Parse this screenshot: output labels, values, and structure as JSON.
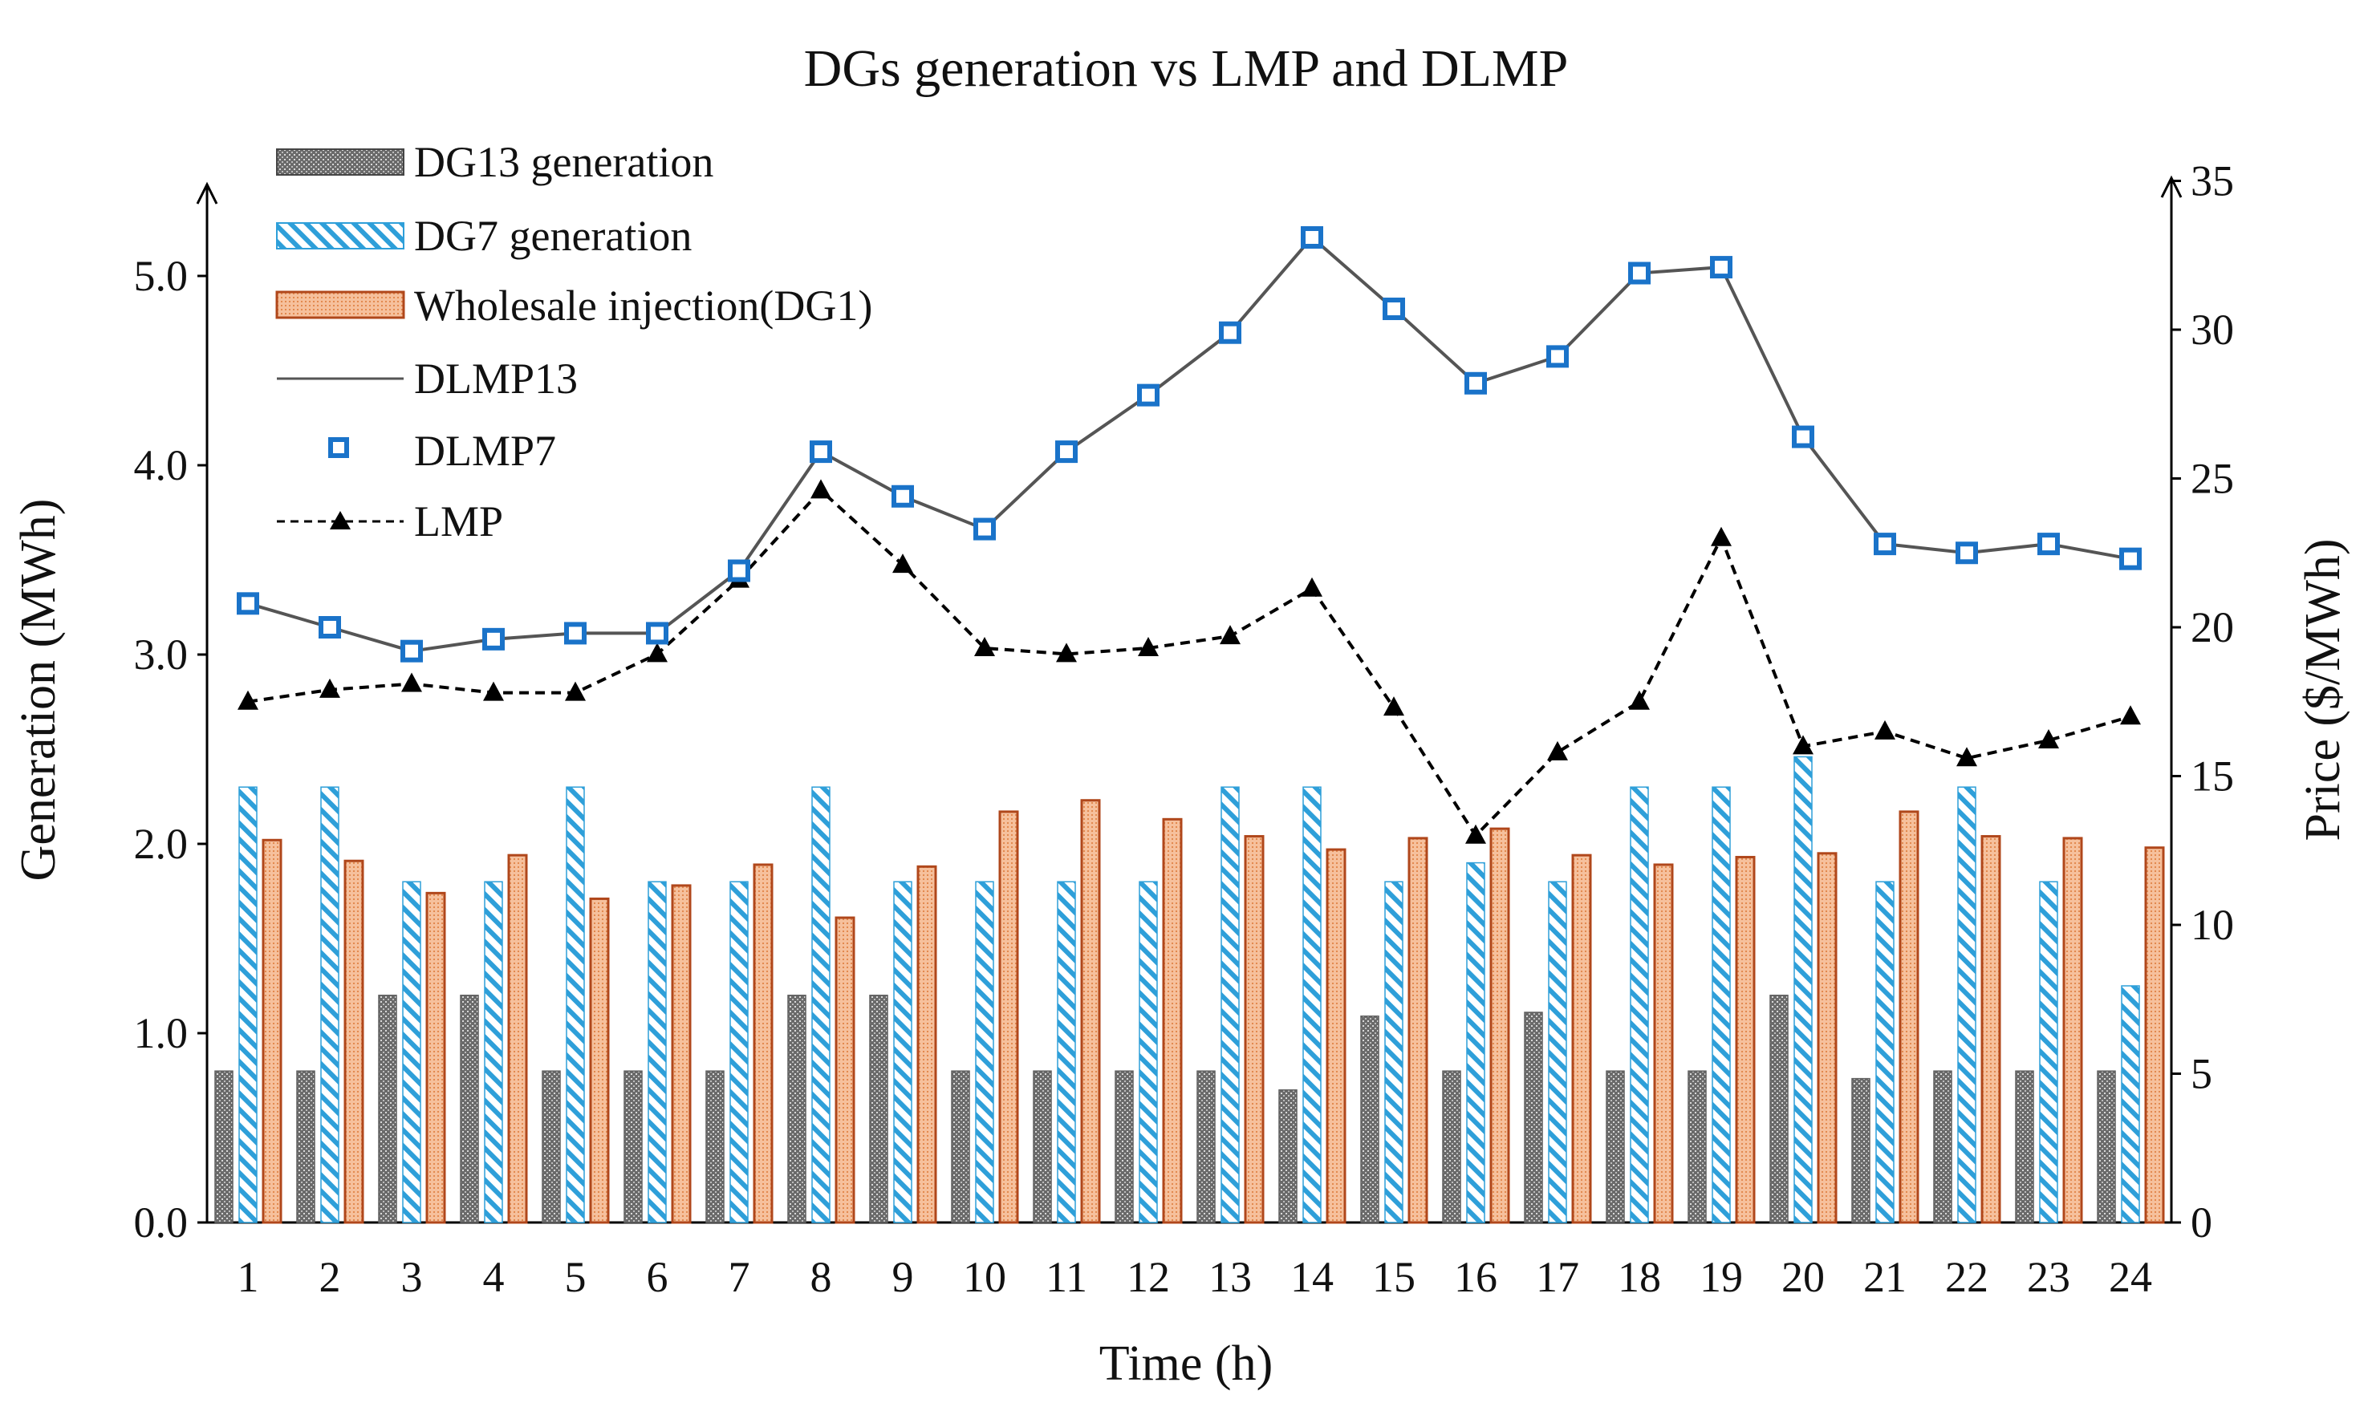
{
  "chart_data": {
    "type": "bar",
    "title": "DGs generation vs LMP and DLMP",
    "xlabel": "Time (h)",
    "ylabel_left": "Generation (MWh)",
    "ylabel_right": "Price ($/MWh)",
    "ylim_left": [
      0,
      5.5
    ],
    "ylim_right": [
      0,
      35
    ],
    "yticks_left": [
      "0.0",
      "1.0",
      "2.0",
      "3.0",
      "4.0",
      "5.0"
    ],
    "yticks_left_values": [
      0,
      1,
      2,
      3,
      4,
      5
    ],
    "yticks_right": [
      "0",
      "5",
      "10",
      "15",
      "20",
      "25",
      "30",
      "35"
    ],
    "yticks_right_values": [
      0,
      5,
      10,
      15,
      20,
      25,
      30,
      35
    ],
    "categories": [
      "1",
      "2",
      "3",
      "4",
      "5",
      "6",
      "7",
      "8",
      "9",
      "10",
      "11",
      "12",
      "13",
      "14",
      "15",
      "16",
      "17",
      "18",
      "19",
      "20",
      "21",
      "22",
      "23",
      "24"
    ],
    "bar_series": [
      {
        "name": "DG13 generation",
        "axis": "left",
        "values": [
          0.8,
          0.8,
          1.2,
          1.2,
          0.8,
          0.8,
          0.8,
          1.2,
          1.2,
          0.8,
          0.8,
          0.8,
          0.8,
          0.7,
          1.09,
          0.8,
          1.11,
          0.8,
          0.8,
          1.2,
          0.76,
          0.8,
          0.8,
          0.8
        ]
      },
      {
        "name": "DG7 generation",
        "axis": "left",
        "values": [
          2.3,
          2.3,
          1.8,
          1.8,
          2.3,
          1.8,
          1.8,
          2.3,
          1.8,
          1.8,
          1.8,
          1.8,
          2.3,
          2.3,
          1.8,
          1.9,
          1.8,
          2.3,
          2.3,
          2.46,
          1.8,
          2.3,
          1.8,
          1.25
        ]
      },
      {
        "name": "Wholesale injection(DG1)",
        "axis": "left",
        "values": [
          2.02,
          1.91,
          1.74,
          1.94,
          1.71,
          1.78,
          1.89,
          1.61,
          1.88,
          2.17,
          2.23,
          2.13,
          2.04,
          1.97,
          2.03,
          2.08,
          1.94,
          1.89,
          1.93,
          1.95,
          2.17,
          2.04,
          2.03,
          1.98
        ]
      }
    ],
    "line_series": [
      {
        "name": "DLMP13",
        "axis": "right",
        "values": [
          20.8,
          20.0,
          19.2,
          19.6,
          19.8,
          19.8,
          21.9,
          25.9,
          24.4,
          23.3,
          25.9,
          27.8,
          29.9,
          33.1,
          30.7,
          28.2,
          29.1,
          31.9,
          32.1,
          26.4,
          22.8,
          22.5,
          22.8,
          22.3
        ]
      },
      {
        "name": "DLMP7",
        "axis": "right",
        "values": [
          20.8,
          20.0,
          19.2,
          19.6,
          19.8,
          19.8,
          21.9,
          25.9,
          24.4,
          23.3,
          25.9,
          27.8,
          29.9,
          33.1,
          30.7,
          28.2,
          29.1,
          31.9,
          32.1,
          26.4,
          22.8,
          22.5,
          22.8,
          22.3
        ]
      },
      {
        "name": "LMP",
        "axis": "right",
        "values": [
          17.5,
          17.9,
          18.1,
          17.8,
          17.8,
          19.1,
          21.6,
          24.6,
          22.1,
          19.3,
          19.1,
          19.3,
          19.7,
          21.3,
          17.3,
          13.0,
          15.8,
          17.5,
          23.0,
          16.0,
          16.5,
          15.6,
          16.2,
          17.0
        ]
      }
    ],
    "legend_position": "top-left",
    "grid": false
  },
  "colors": {
    "dg13": "#5f5f5f",
    "dg7": "#2e9fd9",
    "wholesale": "#b0471b",
    "wholesale_fill": "#f4b184",
    "dlmp13": "#555555",
    "dlmp7": "#1a73c9",
    "lmp": "#000000"
  }
}
